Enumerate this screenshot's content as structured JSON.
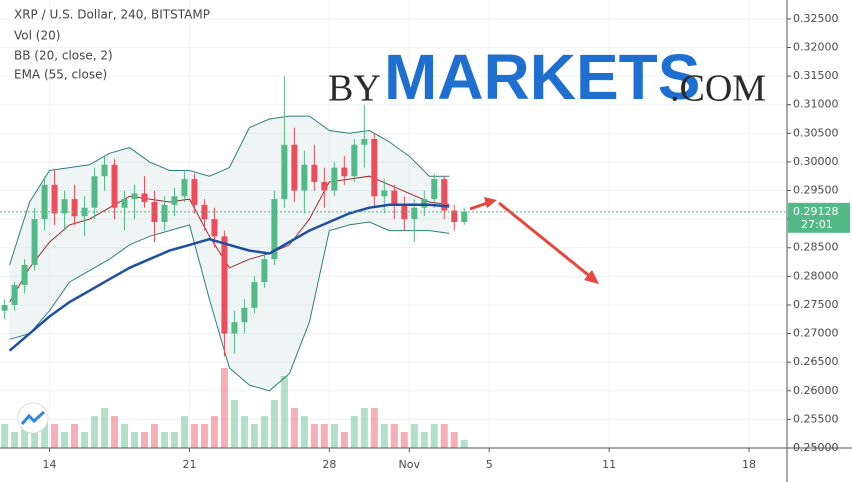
{
  "chart_data": {
    "type": "candlestick",
    "title": "XRP / U.S. Dollar, 240, BITSTAMP",
    "indicator_labels": [
      "Vol (20)",
      "BB (20, close, 2)",
      "EMA (55, close)"
    ],
    "watermark": [
      "BY",
      "MARKETS",
      ".COM"
    ],
    "x": [
      11.75,
      12.25,
      12.75,
      13.25,
      13.75,
      14.25,
      14.75,
      15.25,
      15.75,
      16.25,
      16.75,
      17.25,
      17.75,
      18.25,
      18.75,
      19.25,
      19.75,
      20.25,
      20.75,
      21.25,
      21.75,
      22.25,
      22.75,
      23.25,
      23.75,
      24.25,
      24.75,
      25.25,
      25.75,
      26.25,
      26.75,
      27.25,
      27.75,
      28.25,
      28.75,
      29.25,
      29.75,
      30.25,
      30.75,
      31.25,
      31.75,
      32.25,
      32.75,
      33.25,
      33.75,
      34.25,
      34.75
    ],
    "open": [
      0.274,
      0.275,
      0.2785,
      0.282,
      0.29,
      0.296,
      0.291,
      0.2935,
      0.2905,
      0.292,
      0.2975,
      0.2995,
      0.292,
      0.2935,
      0.2945,
      0.293,
      0.2895,
      0.2925,
      0.294,
      0.297,
      0.2925,
      0.29,
      0.287,
      0.27,
      0.272,
      0.2745,
      0.279,
      0.283,
      0.2935,
      0.303,
      0.295,
      0.2995,
      0.2965,
      0.295,
      0.299,
      0.2975,
      0.303,
      0.304,
      0.294,
      0.295,
      0.2925,
      0.29,
      0.292,
      0.2935,
      0.297,
      0.2915,
      0.2895
    ],
    "high": [
      0.276,
      0.279,
      0.283,
      0.292,
      0.2975,
      0.2985,
      0.295,
      0.296,
      0.294,
      0.299,
      0.301,
      0.3005,
      0.295,
      0.296,
      0.2975,
      0.295,
      0.294,
      0.2955,
      0.2985,
      0.298,
      0.2935,
      0.292,
      0.288,
      0.274,
      0.276,
      0.28,
      0.284,
      0.295,
      0.315,
      0.306,
      0.302,
      0.303,
      0.299,
      0.3,
      0.301,
      0.304,
      0.31,
      0.305,
      0.297,
      0.296,
      0.294,
      0.2935,
      0.295,
      0.298,
      0.2975,
      0.2925,
      0.292
    ],
    "low": [
      0.2725,
      0.274,
      0.277,
      0.281,
      0.288,
      0.289,
      0.288,
      0.289,
      0.287,
      0.29,
      0.295,
      0.29,
      0.288,
      0.29,
      0.292,
      0.286,
      0.288,
      0.2905,
      0.293,
      0.291,
      0.288,
      0.285,
      0.266,
      0.2665,
      0.27,
      0.2735,
      0.278,
      0.282,
      0.292,
      0.293,
      0.291,
      0.295,
      0.292,
      0.294,
      0.296,
      0.2965,
      0.299,
      0.292,
      0.291,
      0.29,
      0.288,
      0.286,
      0.2905,
      0.292,
      0.29,
      0.288,
      0.289
    ],
    "close": [
      0.275,
      0.2785,
      0.282,
      0.29,
      0.296,
      0.291,
      0.2935,
      0.2905,
      0.292,
      0.2975,
      0.2995,
      0.292,
      0.2935,
      0.2945,
      0.293,
      0.2895,
      0.2925,
      0.294,
      0.297,
      0.2925,
      0.29,
      0.287,
      0.27,
      0.272,
      0.2745,
      0.279,
      0.283,
      0.2935,
      0.303,
      0.295,
      0.2995,
      0.2965,
      0.295,
      0.299,
      0.2975,
      0.303,
      0.304,
      0.294,
      0.295,
      0.2925,
      0.29,
      0.292,
      0.2935,
      0.297,
      0.2915,
      0.2895,
      0.2913
    ],
    "volume": [
      3,
      2,
      4,
      5,
      4,
      3,
      2,
      3,
      2,
      4,
      5,
      4,
      3,
      2,
      2,
      3,
      2,
      2,
      4,
      3,
      3,
      4,
      10,
      6,
      4,
      3,
      4,
      6,
      9,
      5,
      4,
      3,
      3,
      3,
      2,
      4,
      5,
      5,
      3,
      3,
      2,
      3,
      2,
      3,
      3,
      2,
      1
    ],
    "up_color": "#53b987",
    "down_color": "#eb4d5c",
    "indicator_x": [
      12,
      13,
      14,
      15,
      16,
      17,
      18,
      19,
      20,
      21,
      22,
      23,
      24,
      25,
      26,
      27,
      28,
      29,
      30,
      31,
      32,
      33,
      34
    ],
    "ema": [
      0.267,
      0.27,
      0.273,
      0.2755,
      0.2775,
      0.2795,
      0.2815,
      0.283,
      0.2845,
      0.2855,
      0.2865,
      0.2855,
      0.2845,
      0.284,
      0.286,
      0.288,
      0.2895,
      0.291,
      0.292,
      0.2925,
      0.2925,
      0.2925,
      0.2922
    ],
    "ema_color": "#1e4fa3",
    "bb_upper": [
      0.282,
      0.293,
      0.2985,
      0.299,
      0.2995,
      0.3015,
      0.3025,
      0.3,
      0.2985,
      0.2985,
      0.2975,
      0.299,
      0.306,
      0.3075,
      0.308,
      0.308,
      0.3055,
      0.305,
      0.3055,
      0.3035,
      0.301,
      0.2975,
      0.2975
    ],
    "bb_lower": [
      0.269,
      0.27,
      0.274,
      0.279,
      0.281,
      0.283,
      0.2855,
      0.287,
      0.288,
      0.289,
      0.276,
      0.264,
      0.261,
      0.26,
      0.263,
      0.272,
      0.288,
      0.289,
      0.2895,
      0.288,
      0.288,
      0.288,
      0.2875
    ],
    "bb_basis": [
      0.2755,
      0.2815,
      0.286,
      0.289,
      0.29,
      0.292,
      0.294,
      0.2935,
      0.293,
      0.2935,
      0.287,
      0.2815,
      0.283,
      0.284,
      0.2855,
      0.29,
      0.2965,
      0.297,
      0.2975,
      0.296,
      0.2945,
      0.293,
      0.2925
    ],
    "bb_color": "#2e7f7a",
    "basis_color": "#a3262e",
    "last_price": 0.29128,
    "countdown": "27:01",
    "xlim": [
      11.52,
      50.9
    ],
    "xticks": [
      14,
      21,
      28,
      {
        "value": 32,
        "label": "Nov"
      },
      {
        "value": 36,
        "label": "5"
      },
      {
        "value": 42,
        "label": "11"
      },
      {
        "value": 49,
        "label": "18"
      }
    ],
    "ylim": [
      0.25,
      0.3283
    ],
    "yticks": [
      {
        "value": 0.325,
        "label": "0.32500"
      },
      {
        "value": 0.32,
        "label": "0.32000"
      },
      {
        "value": 0.315,
        "label": "0.31500"
      },
      {
        "value": 0.31,
        "label": "0.31000"
      },
      {
        "value": 0.305,
        "label": "0.30500"
      },
      {
        "value": 0.3,
        "label": "0.30000"
      },
      {
        "value": 0.295,
        "label": "0.29500"
      },
      {
        "value": 0.29,
        "label": "0.29000"
      },
      {
        "value": 0.285,
        "label": "0.28500"
      },
      {
        "value": 0.28,
        "label": "0.28000"
      },
      {
        "value": 0.275,
        "label": "0.27500"
      },
      {
        "value": 0.27,
        "label": "0.27000"
      },
      {
        "value": 0.265,
        "label": "0.26500"
      },
      {
        "value": 0.26,
        "label": "0.26000"
      },
      {
        "value": 0.255,
        "label": "0.25500"
      },
      {
        "value": 0.25,
        "label": "0.25000"
      }
    ],
    "grid": true
  }
}
